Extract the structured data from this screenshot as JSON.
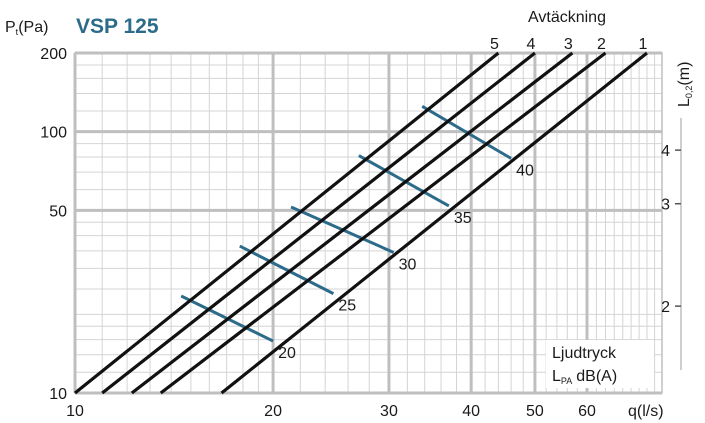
{
  "chart_data": {
    "type": "line",
    "title": "VSP 125",
    "ylabel_main": "P",
    "ylabel_sub": "t",
    "ylabel_unit": "(Pa)",
    "xlabel": "q(l/s)",
    "x_scale": "log",
    "y_scale": "log",
    "xlim": [
      10,
      78
    ],
    "ylim": [
      10,
      200
    ],
    "x_ticks": [
      10,
      20,
      30,
      40,
      50,
      60
    ],
    "y_ticks": [
      10,
      50,
      100,
      200
    ],
    "grid": true,
    "top_axis_label": "Avtäckning",
    "series": [
      {
        "name": "1",
        "x": [
          16.7,
          74.0
        ],
        "y": [
          10,
          200
        ]
      },
      {
        "name": "2",
        "x": [
          13.5,
          64.0
        ],
        "y": [
          10,
          200
        ]
      },
      {
        "name": "3",
        "x": [
          12.2,
          57.0
        ],
        "y": [
          10,
          200
        ]
      },
      {
        "name": "4",
        "x": [
          11.0,
          50.0
        ],
        "y": [
          10,
          200
        ]
      },
      {
        "name": "5",
        "x": [
          10.0,
          44.0
        ],
        "y": [
          10,
          200
        ]
      }
    ],
    "sound_lines": [
      {
        "label": "20",
        "x": [
          14.5,
          20.0
        ],
        "y": [
          23.5,
          15.8
        ]
      },
      {
        "label": "25",
        "x": [
          17.8,
          24.7
        ],
        "y": [
          36.5,
          24.0
        ]
      },
      {
        "label": "30",
        "x": [
          21.3,
          30.5
        ],
        "y": [
          51.5,
          34.5
        ]
      },
      {
        "label": "35",
        "x": [
          27.0,
          37.0
        ],
        "y": [
          81.0,
          52.0
        ]
      },
      {
        "label": "40",
        "x": [
          33.7,
          46.0
        ],
        "y": [
          125.0,
          79.0
        ]
      }
    ],
    "secondary_axis": {
      "label_main": "L",
      "label_sub": "0,2",
      "label_unit": "(m)",
      "ticks": [
        {
          "label": "2",
          "y": 21.5
        },
        {
          "label": "3",
          "y": 53.0
        },
        {
          "label": "4",
          "y": 85.0
        }
      ]
    },
    "legend_lines": [
      "Ljudtryck",
      "dB(A)"
    ],
    "legend_lpa_main": "L",
    "legend_lpa_sub": "PA",
    "colors": {
      "curves": "#111111",
      "sound": "#2d6b8a",
      "grid_major": "#bfbfbf",
      "grid_minor": "#d4d4d4",
      "title": "#2d6b8a"
    }
  }
}
